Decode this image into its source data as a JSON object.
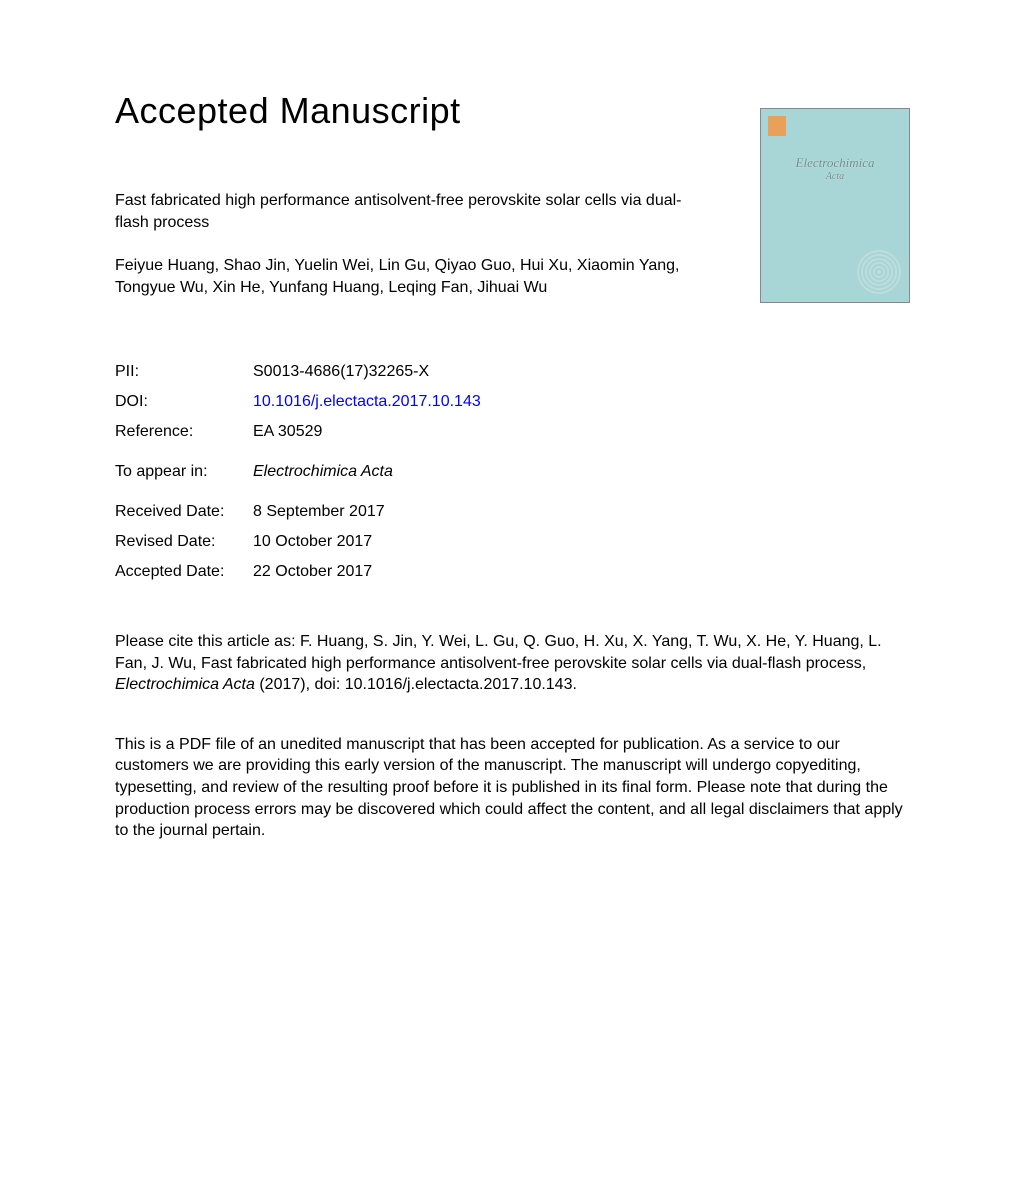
{
  "heading": "Accepted Manuscript",
  "article": {
    "title": "Fast fabricated high performance antisolvent-free perovskite solar cells via dual-flash process",
    "authors": "Feiyue Huang, Shao Jin, Yuelin Wei, Lin Gu, Qiyao Guo, Hui Xu, Xiaomin Yang, Tongyue Wu, Xin He, Yunfang Huang, Leqing Fan, Jihuai Wu"
  },
  "journal_cover": {
    "name": "Electrochimica",
    "sub": "Acta"
  },
  "meta": {
    "pii_label": "PII:",
    "pii": "S0013-4686(17)32265-X",
    "doi_label": "DOI:",
    "doi": "10.1016/j.electacta.2017.10.143",
    "ref_label": "Reference:",
    "ref": "EA 30529",
    "appear_label": "To appear in:",
    "appear": "Electrochimica Acta",
    "received_label": "Received Date:",
    "received": "8 September 2017",
    "revised_label": "Revised Date:",
    "revised": "10 October 2017",
    "accepted_label": "Accepted Date:",
    "accepted": "22 October 2017"
  },
  "citation": {
    "prefix": "Please cite this article as: F. Huang, S. Jin, Y. Wei, L. Gu, Q. Guo, H. Xu, X. Yang, T. Wu, X. He, Y. Huang, L. Fan, J. Wu, Fast fabricated high performance antisolvent-free perovskite solar cells via dual-flash process, ",
    "journal": "Electrochimica Acta",
    "suffix": " (2017), doi: 10.1016/j.electacta.2017.10.143."
  },
  "disclaimer": "This is a PDF file of an unedited manuscript that has been accepted for publication. As a service to our customers we are providing this early version of the manuscript. The manuscript will undergo copyediting, typesetting, and review of the resulting proof before it is published in its final form. Please note that during the production process errors may be discovered which could affect the content, and all legal disclaimers that apply to the journal pertain.",
  "colors": {
    "text": "#000000",
    "link": "#0000ff",
    "cover_bg": "#a8d5d5",
    "cover_logo": "#e8a05a"
  },
  "typography": {
    "heading_fontsize": 36,
    "body_fontsize": 16,
    "font_family": "Arial, Helvetica, sans-serif"
  }
}
